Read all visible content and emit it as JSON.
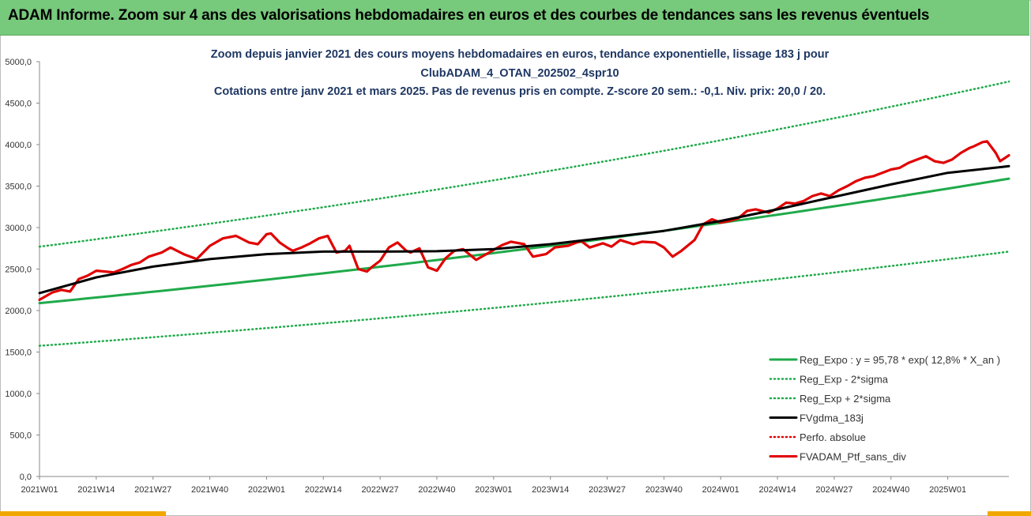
{
  "header": {
    "title": "ADAM Informe. Zoom sur 4 ans des valorisations hebdomadaires en euros et des courbes de tendances sans les revenus éventuels"
  },
  "colors": {
    "header_bg": "#77c97b",
    "accent_bottom": "#f0a800",
    "reg_expo": "#1faa4a",
    "fvgdma": "#000000",
    "ptf": "#e00000"
  },
  "chart_data": {
    "type": "line",
    "title_lines": [
      "Zoom depuis janvier 2021 des cours moyens hebdomadaires  en euros, tendance exponentielle, lissage 183 j pour",
      "ClubADAM_4_OTAN_202502_4spr10",
      "Cotations entre janv 2021 et mars 2025. Pas de revenus pris en compte. Z-score 20 sem.: -0,1. Niv. prix: 20,0 / 20."
    ],
    "xlabel": "",
    "ylabel": "",
    "ylim": [
      0,
      5000
    ],
    "yticks": [
      "0,0",
      "500,0",
      "1000,0",
      "1500,0",
      "2000,0",
      "2500,0",
      "3000,0",
      "3500,0",
      "4000,0",
      "4500,0",
      "5000,0"
    ],
    "x_range_weeks": [
      0,
      222
    ],
    "xticks": [
      {
        "label": "2021W01",
        "week": 0
      },
      {
        "label": "2021W14",
        "week": 13
      },
      {
        "label": "2021W27",
        "week": 26
      },
      {
        "label": "2021W40",
        "week": 39
      },
      {
        "label": "2022W01",
        "week": 52
      },
      {
        "label": "2022W14",
        "week": 65
      },
      {
        "label": "2022W27",
        "week": 78
      },
      {
        "label": "2022W40",
        "week": 91
      },
      {
        "label": "2023W01",
        "week": 104
      },
      {
        "label": "2023W14",
        "week": 117
      },
      {
        "label": "2023W27",
        "week": 130
      },
      {
        "label": "2023W40",
        "week": 143
      },
      {
        "label": "2024W01",
        "week": 156
      },
      {
        "label": "2024W14",
        "week": 169
      },
      {
        "label": "2024W27",
        "week": 182
      },
      {
        "label": "2024W40",
        "week": 195
      },
      {
        "label": "2025W01",
        "week": 208
      }
    ],
    "grid": false,
    "legend_position": "bottom-right",
    "series": [
      {
        "name": "Reg_Expo : y = 95,78 * exp( 12,8% *  X_an )",
        "style": "solid",
        "color": "#1faa4a",
        "x": [
          0,
          222
        ],
        "y": [
          2090,
          3590
        ]
      },
      {
        "name": "Reg_Exp - 2*sigma",
        "style": "dotted",
        "color": "#1faa4a",
        "x": [
          0,
          222
        ],
        "y": [
          1575,
          2710
        ]
      },
      {
        "name": "Reg_Exp + 2*sigma",
        "style": "dotted",
        "color": "#1faa4a",
        "x": [
          0,
          222
        ],
        "y": [
          2770,
          4760
        ]
      },
      {
        "name": "FVgdma_183j",
        "style": "solid",
        "color": "#000000",
        "x": [
          0,
          13,
          26,
          39,
          52,
          65,
          78,
          91,
          104,
          117,
          130,
          143,
          156,
          169,
          182,
          195,
          208,
          222
        ],
        "y": [
          2210,
          2400,
          2530,
          2620,
          2680,
          2710,
          2710,
          2715,
          2740,
          2800,
          2880,
          2960,
          3080,
          3220,
          3370,
          3520,
          3660,
          3740
        ]
      },
      {
        "name": "Perfo. absolue",
        "style": "dotted",
        "color": "#e00000",
        "x": [],
        "y": []
      },
      {
        "name": "FVADAM_Ptf_sans_div",
        "style": "solid",
        "color": "#e00000",
        "x": [
          0,
          3,
          5,
          7,
          9,
          11,
          13,
          15,
          17,
          19,
          21,
          23,
          25,
          28,
          30,
          33,
          36,
          39,
          42,
          45,
          48,
          50,
          52,
          53,
          55,
          57,
          58,
          60,
          62,
          64,
          66,
          68,
          70,
          71,
          73,
          75,
          76,
          78,
          80,
          82,
          84,
          85,
          87,
          89,
          91,
          93,
          95,
          97,
          100,
          103,
          104,
          106,
          108,
          111,
          113,
          116,
          118,
          121,
          124,
          126,
          129,
          131,
          133,
          136,
          138,
          141,
          143,
          145,
          147,
          150,
          152,
          154,
          156,
          158,
          160,
          162,
          164,
          167,
          169,
          171,
          173,
          175,
          177,
          179,
          181,
          183,
          185,
          187,
          189,
          191,
          193,
          195,
          197,
          199,
          201,
          203,
          205,
          207,
          209,
          211,
          213,
          214,
          216,
          217,
          219,
          220,
          222
        ],
        "y": [
          2130,
          2220,
          2250,
          2230,
          2380,
          2420,
          2480,
          2470,
          2460,
          2500,
          2550,
          2580,
          2650,
          2700,
          2760,
          2680,
          2620,
          2780,
          2870,
          2900,
          2820,
          2800,
          2920,
          2930,
          2820,
          2750,
          2720,
          2760,
          2810,
          2870,
          2900,
          2700,
          2720,
          2780,
          2500,
          2470,
          2520,
          2600,
          2760,
          2820,
          2720,
          2700,
          2750,
          2520,
          2480,
          2630,
          2720,
          2740,
          2610,
          2700,
          2730,
          2790,
          2830,
          2800,
          2650,
          2680,
          2760,
          2780,
          2840,
          2760,
          2810,
          2770,
          2850,
          2800,
          2830,
          2820,
          2760,
          2650,
          2720,
          2850,
          3040,
          3100,
          3060,
          3080,
          3110,
          3200,
          3220,
          3180,
          3230,
          3300,
          3290,
          3320,
          3380,
          3410,
          3380,
          3450,
          3500,
          3560,
          3600,
          3620,
          3660,
          3700,
          3720,
          3780,
          3820,
          3860,
          3800,
          3780,
          3820,
          3900,
          3960,
          3980,
          4030,
          4040,
          3900,
          3800,
          3870
        ]
      }
    ]
  }
}
